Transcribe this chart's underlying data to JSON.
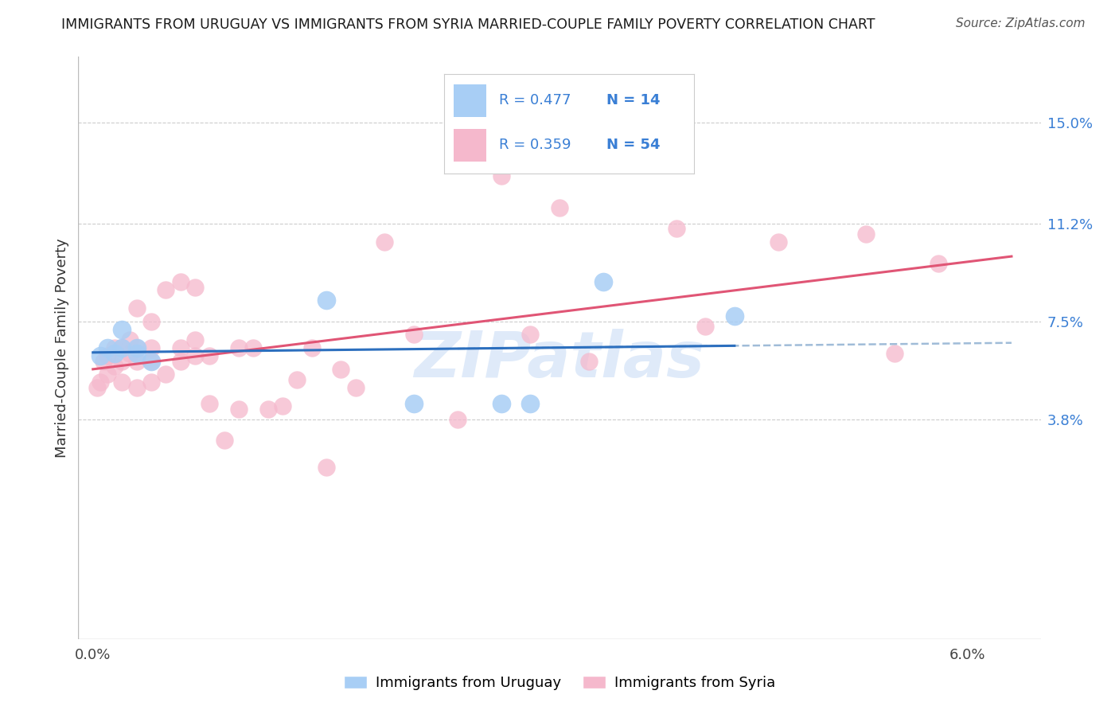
{
  "title": "IMMIGRANTS FROM URUGUAY VS IMMIGRANTS FROM SYRIA MARRIED-COUPLE FAMILY POVERTY CORRELATION CHART",
  "source": "Source: ZipAtlas.com",
  "ylabel": "Married-Couple Family Poverty",
  "y_tick_positions": [
    0.038,
    0.075,
    0.112,
    0.15
  ],
  "y_tick_labels": [
    "3.8%",
    "7.5%",
    "11.2%",
    "15.0%"
  ],
  "xlim": [
    -0.001,
    0.065
  ],
  "ylim": [
    -0.045,
    0.175
  ],
  "plot_ylim": [
    0.0,
    0.16
  ],
  "R_uruguay": 0.477,
  "N_uruguay": 14,
  "R_syria": 0.359,
  "N_syria": 54,
  "color_uruguay": "#a8cef5",
  "color_syria": "#f5b8cc",
  "color_trend_uruguay": "#2c6fbe",
  "color_trend_syria": "#e05575",
  "color_dashed": "#a0bcd8",
  "uruguay_x": [
    0.0005,
    0.001,
    0.0015,
    0.002,
    0.002,
    0.003,
    0.003,
    0.004,
    0.016,
    0.022,
    0.028,
    0.03,
    0.035,
    0.044
  ],
  "uruguay_y": [
    0.062,
    0.065,
    0.063,
    0.065,
    0.072,
    0.063,
    0.065,
    0.06,
    0.083,
    0.044,
    0.044,
    0.044,
    0.09,
    0.077
  ],
  "syria_x": [
    0.0003,
    0.0005,
    0.0007,
    0.001,
    0.001,
    0.0015,
    0.0015,
    0.002,
    0.002,
    0.002,
    0.0025,
    0.0025,
    0.003,
    0.003,
    0.003,
    0.003,
    0.004,
    0.004,
    0.004,
    0.004,
    0.005,
    0.005,
    0.006,
    0.006,
    0.006,
    0.007,
    0.007,
    0.007,
    0.008,
    0.008,
    0.009,
    0.01,
    0.01,
    0.011,
    0.012,
    0.013,
    0.014,
    0.015,
    0.016,
    0.017,
    0.018,
    0.02,
    0.022,
    0.025,
    0.028,
    0.03,
    0.032,
    0.034,
    0.04,
    0.042,
    0.047,
    0.053,
    0.055,
    0.058
  ],
  "syria_y": [
    0.05,
    0.052,
    0.06,
    0.055,
    0.062,
    0.058,
    0.065,
    0.052,
    0.06,
    0.065,
    0.063,
    0.068,
    0.05,
    0.06,
    0.065,
    0.08,
    0.052,
    0.06,
    0.065,
    0.075,
    0.055,
    0.087,
    0.06,
    0.065,
    0.09,
    0.062,
    0.068,
    0.088,
    0.044,
    0.062,
    0.03,
    0.042,
    0.065,
    0.065,
    0.042,
    0.043,
    0.053,
    0.065,
    0.02,
    0.057,
    0.05,
    0.105,
    0.07,
    0.038,
    0.13,
    0.07,
    0.118,
    0.06,
    0.11,
    0.073,
    0.105,
    0.108,
    0.063,
    0.097
  ],
  "watermark": "ZIPatlas",
  "legend_color": "#3a7fd5",
  "background_color": "#ffffff",
  "grid_color": "#cccccc"
}
